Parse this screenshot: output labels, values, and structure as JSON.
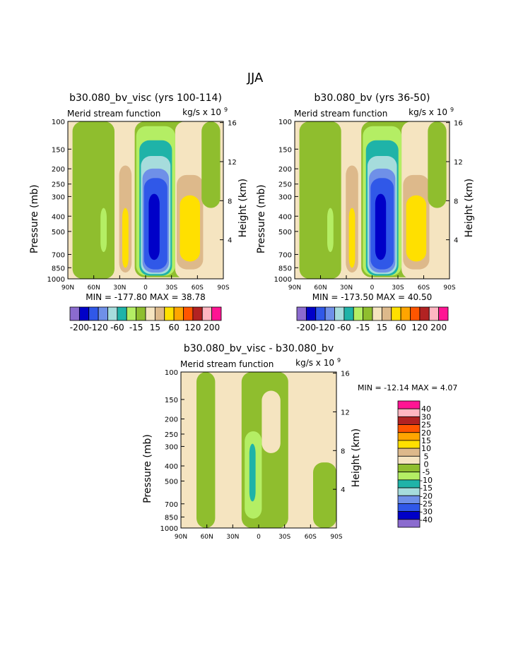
{
  "suptitle": "JJA",
  "palette": {
    "neg4": "#8B6BCF",
    "neg3": "#0000C8",
    "neg2": "#3058E8",
    "neg1": "#6F90E8",
    "neg0": "#A6DCDC",
    "cyan": "#1FB3A8",
    "lgreen": "#B4EE64",
    "green": "#8FBE2E",
    "wheat": "#F5E4C0",
    "tan": "#DDB98B",
    "yellow": "#FFE000",
    "orange": "#FFA500",
    "dorange": "#FF5500",
    "red": "#B22222",
    "pink": "#FFB6C1",
    "magenta": "#FF1493"
  },
  "chart_data": [
    {
      "type": "heatmap",
      "title": "b30.080_bv_visc (yrs 100-114)",
      "left_label": "Merid stream function",
      "units_base": "kg/s x 10",
      "units_exp": "9",
      "ylabel": "Pressure (mb)",
      "y2label": "Height (km)",
      "x_ticks": [
        "90N",
        "60N",
        "30N",
        "0",
        "30S",
        "60S",
        "90S"
      ],
      "y_ticks": [
        "100",
        "150",
        "200",
        "250",
        "300",
        "400",
        "500",
        "700",
        "850",
        "1000"
      ],
      "y2_ticks": [
        "16",
        "12",
        "8",
        "4"
      ],
      "min_label": "MIN = -177.80",
      "max_label": "MAX =  38.78",
      "colorbar_labels": [
        "-200",
        "-120",
        "-60",
        "-15",
        "15",
        "60",
        "120",
        "200"
      ]
    },
    {
      "type": "heatmap",
      "title": "b30.080_bv (yrs 36-50)",
      "left_label": "Merid stream function",
      "units_base": "kg/s x 10",
      "units_exp": "9",
      "ylabel": "Pressure (mb)",
      "y2label": "Height (km)",
      "x_ticks": [
        "90N",
        "60N",
        "30N",
        "0",
        "30S",
        "60S",
        "90S"
      ],
      "y_ticks": [
        "100",
        "150",
        "200",
        "250",
        "300",
        "400",
        "500",
        "700",
        "850",
        "1000"
      ],
      "y2_ticks": [
        "16",
        "12",
        "8",
        "4"
      ],
      "min_label": "MIN = -173.50",
      "max_label": "MAX =  40.50",
      "colorbar_labels": [
        "-200",
        "-120",
        "-60",
        "-15",
        "15",
        "60",
        "120",
        "200"
      ]
    },
    {
      "type": "heatmap",
      "title": "b30.080_bv_visc - b30.080_bv",
      "left_label": "Merid stream function",
      "units_base": "kg/s x 10",
      "units_exp": "9",
      "ylabel": "Pressure (mb)",
      "y2label": "Height (km)",
      "x_ticks": [
        "90N",
        "60N",
        "30N",
        "0",
        "30S",
        "60S",
        "90S"
      ],
      "y_ticks": [
        "100",
        "150",
        "200",
        "250",
        "300",
        "400",
        "500",
        "700",
        "850",
        "1000"
      ],
      "y2_ticks": [
        "16",
        "12",
        "8",
        "4"
      ],
      "min_label": "MIN = -12.14",
      "max_label": "MAX =   4.07",
      "colorbar_labels": [
        "40",
        "30",
        "25",
        "20",
        "15",
        "10",
        "5",
        "0",
        "-5",
        "-10",
        "-15",
        "-20",
        "-25",
        "-30",
        "-40"
      ]
    }
  ]
}
